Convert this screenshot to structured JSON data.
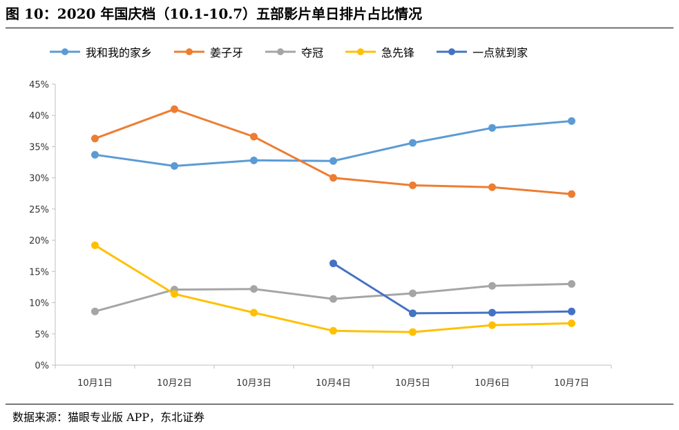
{
  "figure": {
    "title": "图 10：2020 年国庆档（10.1-10.7）五部影片单日排片占比情况",
    "source": "数据来源：猫眼专业版 APP，东北证券"
  },
  "chart_data": {
    "type": "line",
    "title": "2020 年国庆档（10.1-10.7）五部影片单日排片占比情况",
    "xlabel": "",
    "ylabel": "",
    "categories": [
      "10月1日",
      "10月2日",
      "10月3日",
      "10月4日",
      "10月5日",
      "10月6日",
      "10月7日"
    ],
    "y_ticks": [
      "0%",
      "5%",
      "10%",
      "15%",
      "20%",
      "25%",
      "30%",
      "35%",
      "40%",
      "45%"
    ],
    "ylim": [
      0,
      45
    ],
    "grid": false,
    "legend_position": "top",
    "series": [
      {
        "name": "我和我的家乡",
        "color": "#5B9BD5",
        "values": [
          33.7,
          31.9,
          32.8,
          32.7,
          35.6,
          38.0,
          39.1
        ]
      },
      {
        "name": "姜子牙",
        "color": "#ED7D31",
        "values": [
          36.3,
          41.0,
          36.6,
          30.0,
          28.8,
          28.5,
          27.4
        ]
      },
      {
        "name": "夺冠",
        "color": "#A5A5A5",
        "values": [
          8.6,
          12.1,
          12.2,
          10.6,
          11.5,
          12.7,
          13.0
        ]
      },
      {
        "name": "急先锋",
        "color": "#FFC000",
        "values": [
          19.2,
          11.4,
          8.4,
          5.5,
          5.3,
          6.4,
          6.7
        ]
      },
      {
        "name": "一点就到家",
        "color": "#4472C4",
        "values": [
          null,
          null,
          null,
          16.3,
          8.3,
          8.4,
          8.6
        ]
      }
    ]
  }
}
